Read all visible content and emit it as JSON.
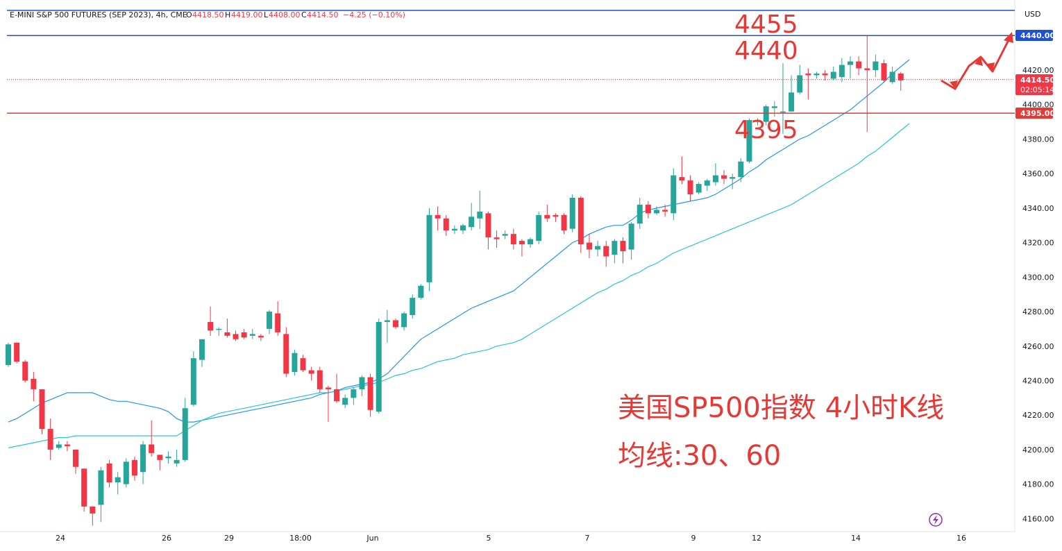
{
  "header": {
    "symbol_text": "E-MINI S&P 500 FUTURES (SEP 2023), 4h, CME",
    "open_label": "O",
    "open": "4418.50",
    "high_label": "H",
    "high": "4419.00",
    "low_label": "L",
    "low": "4408.00",
    "close_label": "C",
    "close": "4414.50",
    "change": "−4.25 (−0.10%)"
  },
  "axis": {
    "currency": "USD",
    "y_ticks": [
      "4420.00",
      "4400.00",
      "4380.00",
      "4360.00",
      "4340.00",
      "4320.00",
      "4300.00",
      "4280.00",
      "4260.00",
      "4240.00",
      "4220.00",
      "4200.00",
      "4180.00",
      "4160.00"
    ],
    "x_ticks": [
      "24",
      "26",
      "29",
      "18:00",
      "Jun",
      "5",
      "7",
      "9",
      "12",
      "14",
      "16"
    ]
  },
  "price_tags": {
    "upper_line": "4440.00",
    "last_price": "4414.50",
    "countdown": "02:05:14",
    "support_line": "4395.00"
  },
  "annotations": {
    "level_4455": "4455",
    "level_4440": "4440",
    "level_4395": "4395",
    "title_cn": "美国SP500指数 4小时K线",
    "ma_cn": "均线:30、60"
  },
  "colors": {
    "up": "#26a69a",
    "down": "#f23645",
    "ma30": "#2196f3",
    "ma60": "#26c6da",
    "hline_blue": "#1e4fd8",
    "hline_red": "#e53935",
    "annotation": "#e53935"
  },
  "chart_data": {
    "type": "candlestick",
    "title": "美国SP500指数 4小时K线",
    "ylim": [
      4155,
      4462
    ],
    "horizontal_levels": [
      4455,
      4440,
      4395
    ],
    "candles": [
      {
        "o": 4249,
        "h": 4262,
        "l": 4248,
        "c": 4261
      },
      {
        "o": 4262,
        "h": 4262,
        "l": 4250,
        "c": 4251
      },
      {
        "o": 4251,
        "h": 4252,
        "l": 4239,
        "c": 4240
      },
      {
        "o": 4241,
        "h": 4245,
        "l": 4228,
        "c": 4235
      },
      {
        "o": 4235,
        "h": 4235,
        "l": 4209,
        "c": 4212
      },
      {
        "o": 4212,
        "h": 4218,
        "l": 4194,
        "c": 4200
      },
      {
        "o": 4201,
        "h": 4205,
        "l": 4200,
        "c": 4203
      },
      {
        "o": 4203,
        "h": 4205,
        "l": 4199,
        "c": 4202
      },
      {
        "o": 4200,
        "h": 4200,
        "l": 4186,
        "c": 4190
      },
      {
        "o": 4189,
        "h": 4189,
        "l": 4164,
        "c": 4167
      },
      {
        "o": 4167,
        "h": 4167,
        "l": 4156,
        "c": 4163
      },
      {
        "o": 4168,
        "h": 4190,
        "l": 4158,
        "c": 4188
      },
      {
        "o": 4192,
        "h": 4194,
        "l": 4178,
        "c": 4181
      },
      {
        "o": 4181,
        "h": 4187,
        "l": 4174,
        "c": 4184
      },
      {
        "o": 4180,
        "h": 4195,
        "l": 4178,
        "c": 4193
      },
      {
        "o": 4194,
        "h": 4196,
        "l": 4182,
        "c": 4185
      },
      {
        "o": 4187,
        "h": 4205,
        "l": 4180,
        "c": 4203
      },
      {
        "o": 4203,
        "h": 4217,
        "l": 4196,
        "c": 4198
      },
      {
        "o": 4197,
        "h": 4197,
        "l": 4188,
        "c": 4194
      },
      {
        "o": 4195,
        "h": 4199,
        "l": 4192,
        "c": 4196
      },
      {
        "o": 4192,
        "h": 4200,
        "l": 4190,
        "c": 4194
      },
      {
        "o": 4194,
        "h": 4230,
        "l": 4193,
        "c": 4224
      },
      {
        "o": 4226,
        "h": 4257,
        "l": 4225,
        "c": 4253
      },
      {
        "o": 4252,
        "h": 4264,
        "l": 4248,
        "c": 4264
      },
      {
        "o": 4274,
        "h": 4283,
        "l": 4266,
        "c": 4269
      },
      {
        "o": 4270,
        "h": 4271,
        "l": 4266,
        "c": 4270
      },
      {
        "o": 4268,
        "h": 4276,
        "l": 4265,
        "c": 4266
      },
      {
        "o": 4267,
        "h": 4269,
        "l": 4263,
        "c": 4264
      },
      {
        "o": 4268,
        "h": 4270,
        "l": 4264,
        "c": 4265
      },
      {
        "o": 4266,
        "h": 4270,
        "l": 4264,
        "c": 4267
      },
      {
        "o": 4266,
        "h": 4267,
        "l": 4263,
        "c": 4265
      },
      {
        "o": 4270,
        "h": 4281,
        "l": 4267,
        "c": 4280
      },
      {
        "o": 4279,
        "h": 4286,
        "l": 4266,
        "c": 4268
      },
      {
        "o": 4267,
        "h": 4271,
        "l": 4242,
        "c": 4244
      },
      {
        "o": 4245,
        "h": 4258,
        "l": 4243,
        "c": 4256
      },
      {
        "o": 4253,
        "h": 4255,
        "l": 4245,
        "c": 4246
      },
      {
        "o": 4246,
        "h": 4248,
        "l": 4240,
        "c": 4244
      },
      {
        "o": 4246,
        "h": 4248,
        "l": 4233,
        "c": 4235
      },
      {
        "o": 4236,
        "h": 4237,
        "l": 4216,
        "c": 4235
      },
      {
        "o": 4235,
        "h": 4244,
        "l": 4227,
        "c": 4228
      },
      {
        "o": 4226,
        "h": 4232,
        "l": 4224,
        "c": 4230
      },
      {
        "o": 4230,
        "h": 4236,
        "l": 4226,
        "c": 4235
      },
      {
        "o": 4235,
        "h": 4243,
        "l": 4231,
        "c": 4242
      },
      {
        "o": 4242,
        "h": 4244,
        "l": 4219,
        "c": 4223
      },
      {
        "o": 4222,
        "h": 4276,
        "l": 4221,
        "c": 4274
      },
      {
        "o": 4274,
        "h": 4281,
        "l": 4262,
        "c": 4275
      },
      {
        "o": 4275,
        "h": 4276,
        "l": 4270,
        "c": 4271
      },
      {
        "o": 4271,
        "h": 4280,
        "l": 4269,
        "c": 4279
      },
      {
        "o": 4278,
        "h": 4290,
        "l": 4276,
        "c": 4288
      },
      {
        "o": 4288,
        "h": 4296,
        "l": 4287,
        "c": 4295
      },
      {
        "o": 4297,
        "h": 4340,
        "l": 4292,
        "c": 4336
      },
      {
        "o": 4336,
        "h": 4341,
        "l": 4327,
        "c": 4334
      },
      {
        "o": 4334,
        "h": 4336,
        "l": 4324,
        "c": 4327
      },
      {
        "o": 4327,
        "h": 4330,
        "l": 4325,
        "c": 4328
      },
      {
        "o": 4327,
        "h": 4331,
        "l": 4325,
        "c": 4330
      },
      {
        "o": 4329,
        "h": 4343,
        "l": 4327,
        "c": 4335
      },
      {
        "o": 4334,
        "h": 4350,
        "l": 4328,
        "c": 4338
      },
      {
        "o": 4337,
        "h": 4338,
        "l": 4316,
        "c": 4323
      },
      {
        "o": 4323,
        "h": 4327,
        "l": 4317,
        "c": 4322
      },
      {
        "o": 4324,
        "h": 4327,
        "l": 4322,
        "c": 4325
      },
      {
        "o": 4325,
        "h": 4328,
        "l": 4316,
        "c": 4319
      },
      {
        "o": 4321,
        "h": 4322,
        "l": 4312,
        "c": 4319
      },
      {
        "o": 4319,
        "h": 4323,
        "l": 4317,
        "c": 4322
      },
      {
        "o": 4321,
        "h": 4338,
        "l": 4319,
        "c": 4336
      },
      {
        "o": 4336,
        "h": 4342,
        "l": 4332,
        "c": 4334
      },
      {
        "o": 4336,
        "h": 4337,
        "l": 4332,
        "c": 4335
      },
      {
        "o": 4336,
        "h": 4337,
        "l": 4325,
        "c": 4327
      },
      {
        "o": 4328,
        "h": 4348,
        "l": 4326,
        "c": 4346
      },
      {
        "o": 4346,
        "h": 4347,
        "l": 4314,
        "c": 4319
      },
      {
        "o": 4320,
        "h": 4325,
        "l": 4311,
        "c": 4316
      },
      {
        "o": 4316,
        "h": 4321,
        "l": 4312,
        "c": 4318
      },
      {
        "o": 4318,
        "h": 4321,
        "l": 4306,
        "c": 4312
      },
      {
        "o": 4313,
        "h": 4322,
        "l": 4308,
        "c": 4321
      },
      {
        "o": 4321,
        "h": 4323,
        "l": 4308,
        "c": 4315
      },
      {
        "o": 4316,
        "h": 4332,
        "l": 4310,
        "c": 4331
      },
      {
        "o": 4331,
        "h": 4346,
        "l": 4328,
        "c": 4342
      },
      {
        "o": 4342,
        "h": 4344,
        "l": 4334,
        "c": 4337
      },
      {
        "o": 4337,
        "h": 4341,
        "l": 4336,
        "c": 4339
      },
      {
        "o": 4339,
        "h": 4342,
        "l": 4335,
        "c": 4338
      },
      {
        "o": 4337,
        "h": 4363,
        "l": 4333,
        "c": 4359
      },
      {
        "o": 4358,
        "h": 4370,
        "l": 4354,
        "c": 4356
      },
      {
        "o": 4356,
        "h": 4359,
        "l": 4344,
        "c": 4348
      },
      {
        "o": 4349,
        "h": 4355,
        "l": 4348,
        "c": 4354
      },
      {
        "o": 4353,
        "h": 4357,
        "l": 4350,
        "c": 4356
      },
      {
        "o": 4355,
        "h": 4366,
        "l": 4353,
        "c": 4359
      },
      {
        "o": 4359,
        "h": 4362,
        "l": 4354,
        "c": 4357
      },
      {
        "o": 4357,
        "h": 4360,
        "l": 4351,
        "c": 4358
      },
      {
        "o": 4358,
        "h": 4369,
        "l": 4355,
        "c": 4367
      },
      {
        "o": 4367,
        "h": 4392,
        "l": 4366,
        "c": 4391
      },
      {
        "o": 4391,
        "h": 4392,
        "l": 4388,
        "c": 4390
      },
      {
        "o": 4390,
        "h": 4400,
        "l": 4388,
        "c": 4399
      },
      {
        "o": 4398,
        "h": 4402,
        "l": 4393,
        "c": 4399
      },
      {
        "o": 4396,
        "h": 4424,
        "l": 4383,
        "c": 4396
      },
      {
        "o": 4396,
        "h": 4417,
        "l": 4396,
        "c": 4407
      },
      {
        "o": 4407,
        "h": 4423,
        "l": 4406,
        "c": 4417
      },
      {
        "o": 4418,
        "h": 4421,
        "l": 4403,
        "c": 4417
      },
      {
        "o": 4417,
        "h": 4419,
        "l": 4415,
        "c": 4418
      },
      {
        "o": 4418,
        "h": 4420,
        "l": 4414,
        "c": 4417
      },
      {
        "o": 4415,
        "h": 4422,
        "l": 4414,
        "c": 4419
      },
      {
        "o": 4416,
        "h": 4427,
        "l": 4413,
        "c": 4423
      },
      {
        "o": 4423,
        "h": 4428,
        "l": 4415,
        "c": 4425
      },
      {
        "o": 4425,
        "h": 4428,
        "l": 4417,
        "c": 4421
      },
      {
        "o": 4421,
        "h": 4440,
        "l": 4384,
        "c": 4420
      },
      {
        "o": 4420,
        "h": 4429,
        "l": 4416,
        "c": 4425
      },
      {
        "o": 4424,
        "h": 4426,
        "l": 4413,
        "c": 4414
      },
      {
        "o": 4413,
        "h": 4422,
        "l": 4412,
        "c": 4419
      },
      {
        "o": 4418,
        "h": 4419,
        "l": 4408,
        "c": 4414
      }
    ],
    "ma30": [
      4216,
      4218,
      4221,
      4224,
      4227,
      4229,
      4231,
      4233,
      4233,
      4233,
      4233,
      4231,
      4229,
      4228,
      4228,
      4227,
      4226,
      4225,
      4224,
      4222,
      4218,
      4216,
      4216,
      4217,
      4218,
      4219,
      4220,
      4221,
      4222,
      4223,
      4224,
      4225,
      4226,
      4227,
      4228,
      4229,
      4230,
      4232,
      4233,
      4234,
      4236,
      4237,
      4238,
      4239,
      4241,
      4244,
      4249,
      4254,
      4259,
      4264,
      4267,
      4270,
      4273,
      4276,
      4279,
      4282,
      4284,
      4286,
      4288,
      4290,
      4292,
      4296,
      4300,
      4304,
      4308,
      4312,
      4316,
      4320,
      4322,
      4325,
      4327,
      4329,
      4330,
      4330,
      4333,
      4337,
      4339,
      4340,
      4341,
      4342,
      4343,
      4344,
      4345,
      4346,
      4348,
      4351,
      4354,
      4357,
      4361,
      4364,
      4368,
      4371,
      4374,
      4377,
      4380,
      4382,
      4385,
      4388,
      4391,
      4394,
      4397,
      4401,
      4405,
      4409,
      4413,
      4418,
      4422,
      4426
    ],
    "ma60": [
      4201,
      4202,
      4203,
      4204,
      4205,
      4206,
      4207,
      4207,
      4208,
      4208,
      4208,
      4208,
      4208,
      4208,
      4208,
      4208,
      4208,
      4208,
      4208,
      4208,
      4208,
      4211,
      4214,
      4217,
      4219,
      4221,
      4222,
      4223,
      4224,
      4225,
      4226,
      4227,
      4228,
      4229,
      4230,
      4231,
      4232,
      4233,
      4233,
      4234,
      4235,
      4236,
      4237,
      4238,
      4239,
      4241,
      4243,
      4244,
      4246,
      4247,
      4249,
      4251,
      4252,
      4253,
      4255,
      4256,
      4257,
      4258,
      4260,
      4261,
      4262,
      4264,
      4267,
      4270,
      4273,
      4276,
      4279,
      4282,
      4285,
      4288,
      4291,
      4293,
      4296,
      4298,
      4301,
      4303,
      4306,
      4308,
      4311,
      4314,
      4316,
      4318,
      4320,
      4322,
      4324,
      4326,
      4328,
      4330,
      4332,
      4334,
      4336,
      4338,
      4340,
      4342,
      4345,
      4348,
      4351,
      4354,
      4357,
      4360,
      4363,
      4366,
      4370,
      4373,
      4377,
      4381,
      4385,
      4389
    ]
  }
}
